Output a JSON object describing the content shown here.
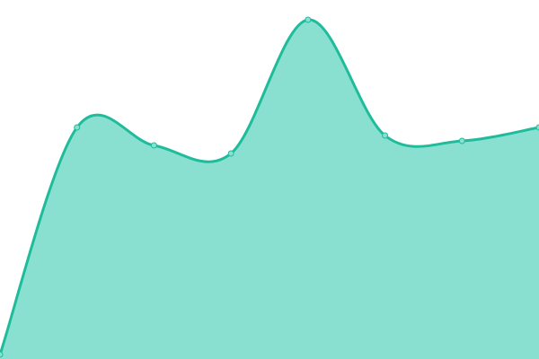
{
  "chart_data": {
    "type": "area",
    "x": [
      0,
      1,
      2,
      3,
      4,
      5,
      6,
      7
    ],
    "values": [
      1.25,
      64.5,
      59.5,
      57.25,
      94.5,
      62.25,
      60.75,
      64.5
    ],
    "ylim": [
      0,
      100
    ],
    "grid": false,
    "axes_visible": false,
    "smooth": true,
    "colors": {
      "line": "#1fbc9c",
      "fill": "#89e0d0",
      "marker_fill": "#89e0d0"
    }
  }
}
